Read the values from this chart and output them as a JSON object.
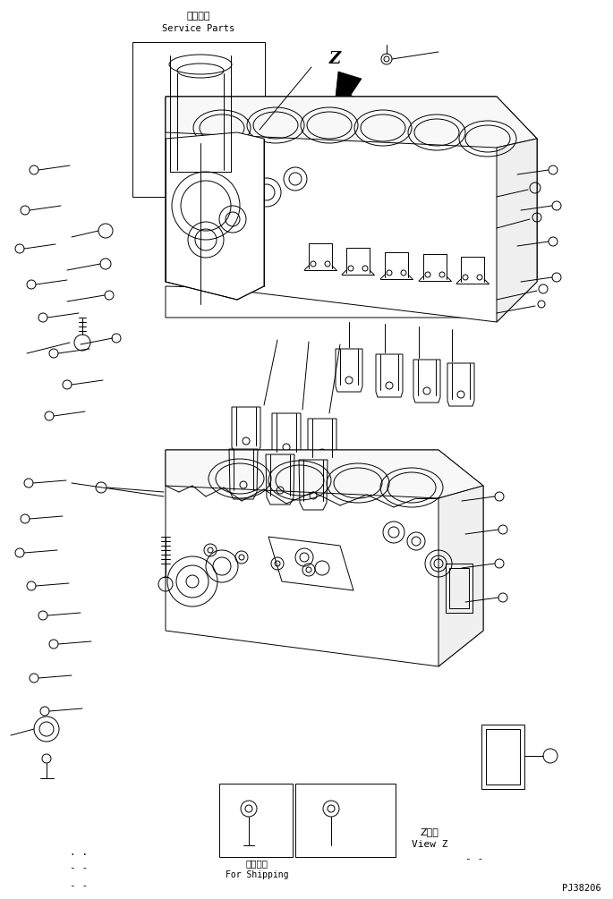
{
  "bg_color": "#ffffff",
  "line_color": "#000000",
  "fig_width": 6.85,
  "fig_height": 10.05,
  "dpi": 100,
  "service_parts_label_jp": "補給専用",
  "service_parts_label_en": "Service Parts",
  "view_z_label_jp": "Z　視",
  "view_z_label_en": "View Z",
  "shipping_label_jp": "運搜部品",
  "shipping_label_en": "For Shipping",
  "part_number": "PJ38206"
}
